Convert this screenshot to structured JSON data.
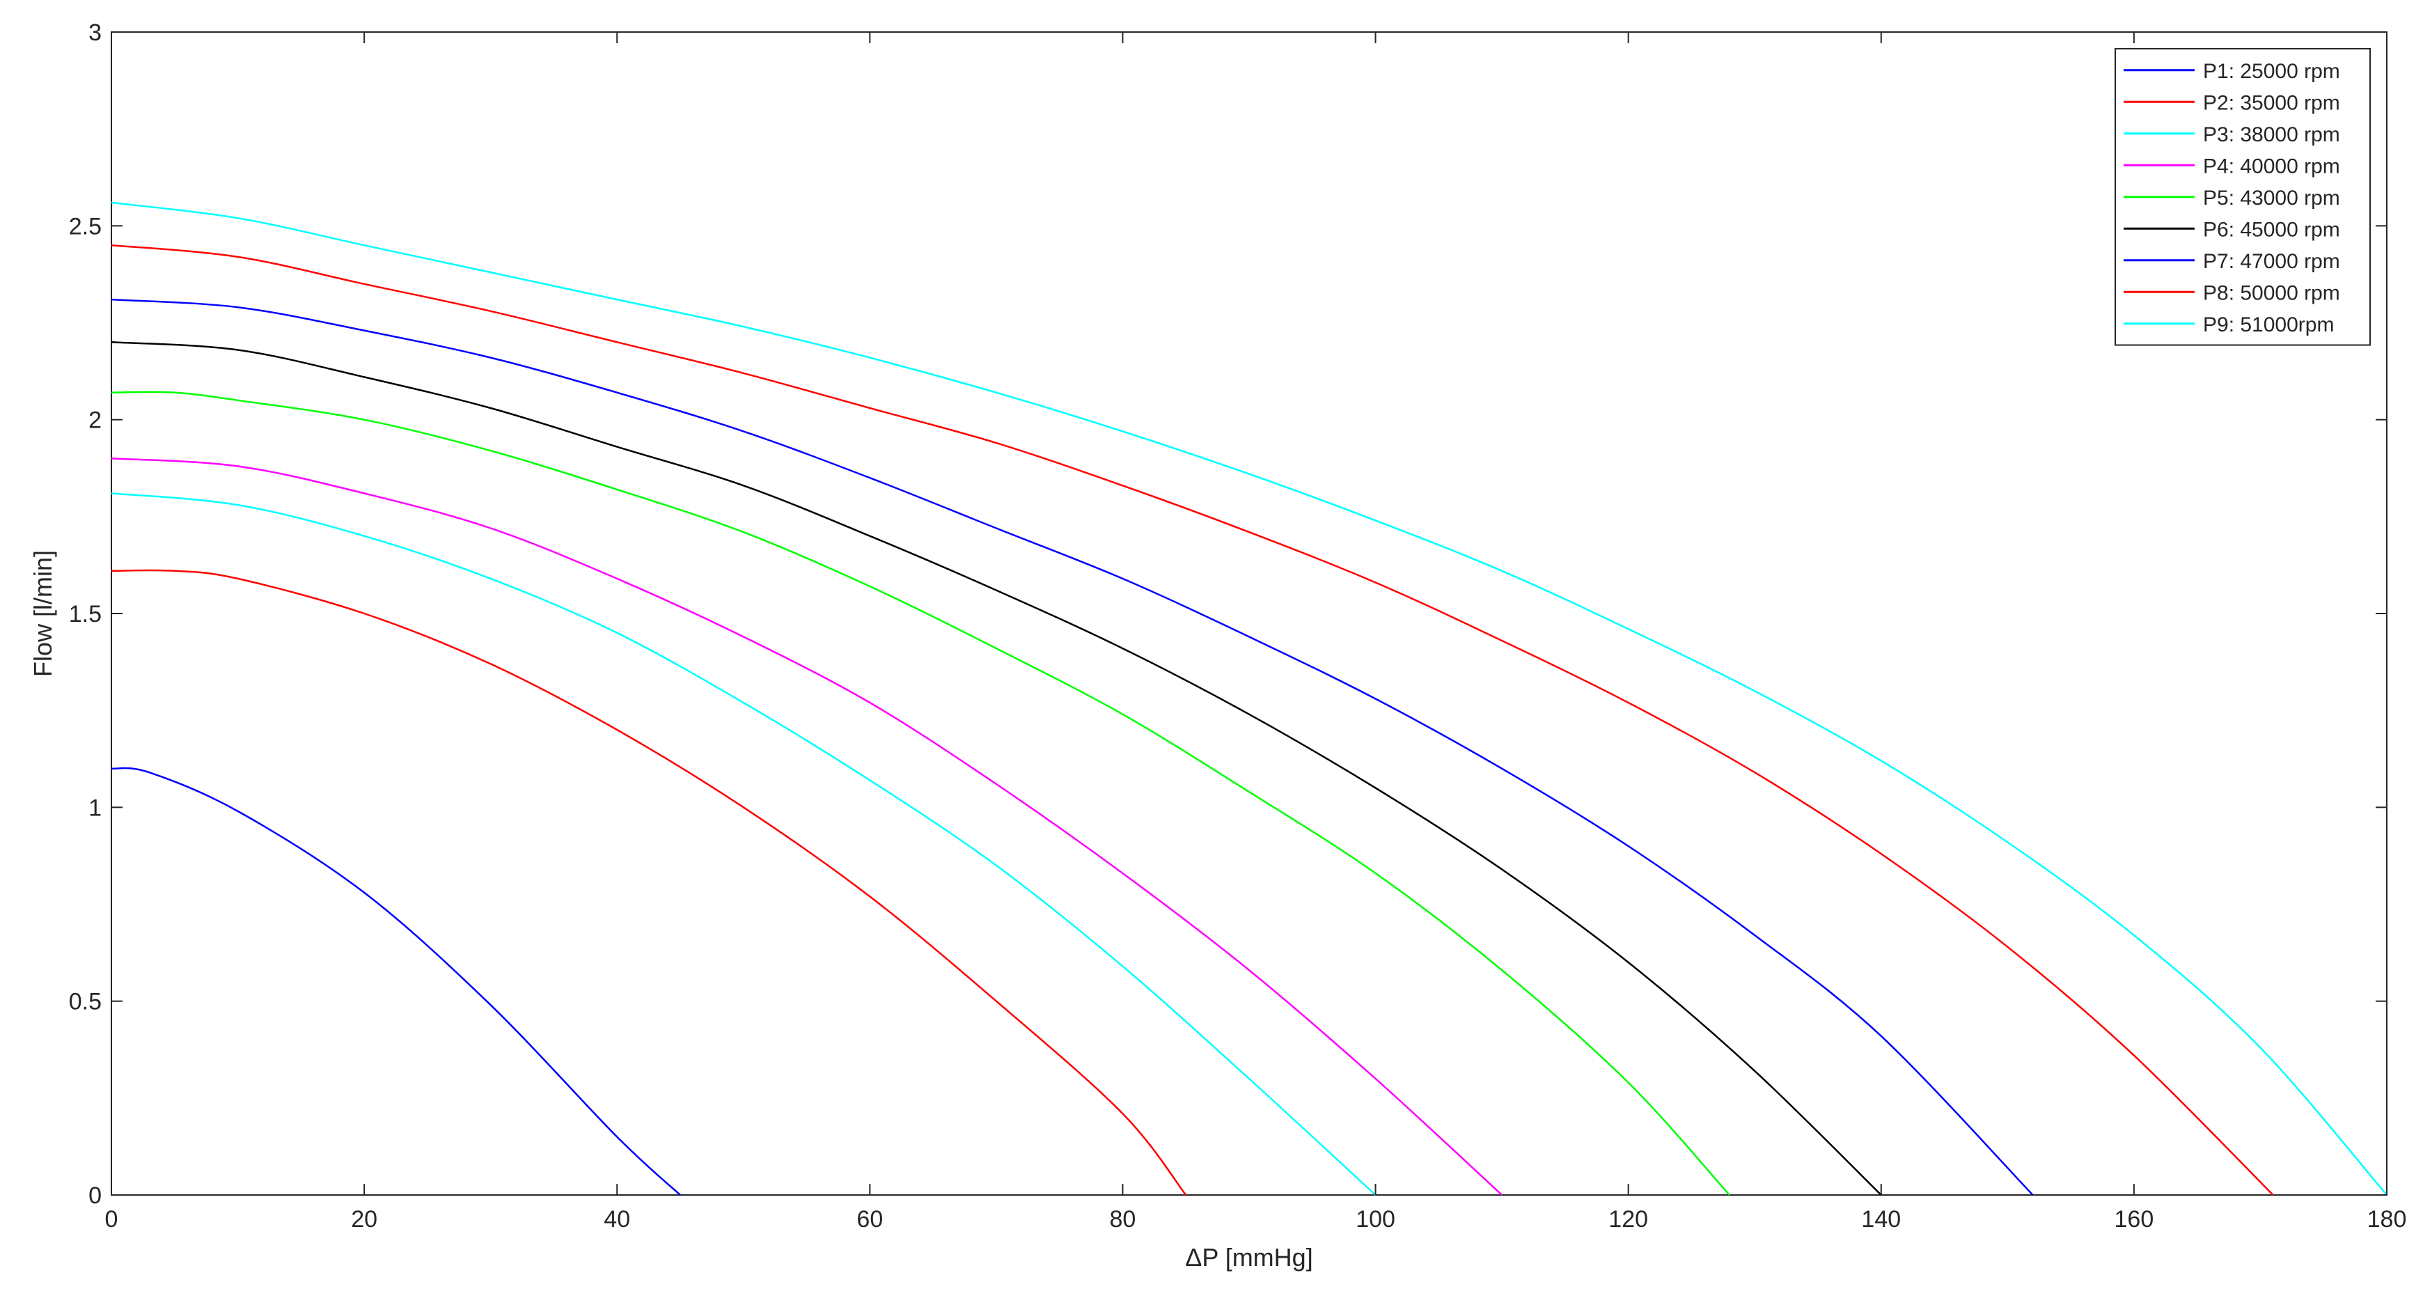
{
  "chart_data": {
    "type": "line",
    "title": "",
    "xlabel": "ΔP [mmHg]",
    "ylabel": "Flow [l/min]",
    "xlim": [
      0,
      180
    ],
    "ylim": [
      0,
      3
    ],
    "x_ticks": [
      "0",
      "20",
      "40",
      "60",
      "80",
      "100",
      "120",
      "140",
      "160",
      "180"
    ],
    "y_ticks": [
      "0",
      "0.5",
      "1",
      "1.5",
      "2",
      "2.5",
      "3"
    ],
    "grid": false,
    "legend_position": "top-right",
    "series": [
      {
        "name": "P1: 25000 rpm",
        "color": "#0000ff",
        "x": [
          0,
          3,
          10,
          20,
          30,
          40,
          45
        ],
        "y": [
          1.1,
          1.09,
          0.99,
          0.78,
          0.49,
          0.15,
          0
        ]
      },
      {
        "name": "P2: 35000 rpm",
        "color": "#ff0000",
        "x": [
          0,
          5,
          10,
          20,
          30,
          40,
          50,
          60,
          70,
          80,
          85
        ],
        "y": [
          1.61,
          1.61,
          1.59,
          1.5,
          1.37,
          1.2,
          1.0,
          0.77,
          0.5,
          0.21,
          0
        ]
      },
      {
        "name": "P3: 38000 rpm",
        "color": "#00ffff",
        "x": [
          0,
          10,
          20,
          30,
          40,
          50,
          60,
          70,
          80,
          90,
          100
        ],
        "y": [
          1.81,
          1.78,
          1.7,
          1.59,
          1.45,
          1.27,
          1.07,
          0.85,
          0.59,
          0.3,
          0
        ]
      },
      {
        "name": "P4: 40000 rpm",
        "color": "#ff00ff",
        "x": [
          0,
          10,
          20,
          30,
          40,
          50,
          60,
          70,
          80,
          90,
          100,
          110
        ],
        "y": [
          1.9,
          1.88,
          1.81,
          1.72,
          1.59,
          1.44,
          1.27,
          1.06,
          0.83,
          0.58,
          0.3,
          0
        ]
      },
      {
        "name": "P5: 43000 rpm",
        "color": "#00ff00",
        "x": [
          0,
          5,
          10,
          20,
          30,
          40,
          50,
          60,
          70,
          80,
          90,
          100,
          110,
          120,
          128
        ],
        "y": [
          2.07,
          2.07,
          2.05,
          2.0,
          1.92,
          1.82,
          1.71,
          1.57,
          1.41,
          1.24,
          1.04,
          0.83,
          0.58,
          0.29,
          0
        ]
      },
      {
        "name": "P6: 45000 rpm",
        "color": "#000000",
        "x": [
          0,
          10,
          20,
          30,
          40,
          50,
          60,
          70,
          80,
          90,
          100,
          110,
          120,
          130,
          140
        ],
        "y": [
          2.2,
          2.18,
          2.11,
          2.03,
          1.93,
          1.83,
          1.7,
          1.56,
          1.41,
          1.24,
          1.05,
          0.84,
          0.6,
          0.32,
          0
        ]
      },
      {
        "name": "P7: 47000 rpm",
        "color": "#0000ff",
        "x": [
          0,
          10,
          20,
          30,
          40,
          50,
          60,
          70,
          80,
          90,
          100,
          110,
          120,
          130,
          140,
          152
        ],
        "y": [
          2.31,
          2.29,
          2.23,
          2.16,
          2.07,
          1.97,
          1.85,
          1.72,
          1.59,
          1.44,
          1.28,
          1.1,
          0.9,
          0.67,
          0.41,
          0
        ]
      },
      {
        "name": "P8: 50000 rpm",
        "color": "#ff0000",
        "x": [
          0,
          10,
          20,
          30,
          40,
          50,
          60,
          70,
          80,
          90,
          100,
          110,
          120,
          130,
          140,
          150,
          160,
          171
        ],
        "y": [
          2.45,
          2.42,
          2.35,
          2.28,
          2.2,
          2.12,
          2.03,
          1.94,
          1.83,
          1.71,
          1.58,
          1.43,
          1.27,
          1.09,
          0.88,
          0.64,
          0.36,
          0
        ]
      },
      {
        "name": "P9: 51000rpm",
        "color": "#00ffff",
        "x": [
          0,
          10,
          20,
          30,
          40,
          50,
          60,
          70,
          80,
          90,
          100,
          110,
          120,
          130,
          140,
          150,
          160,
          170,
          180
        ],
        "y": [
          2.56,
          2.52,
          2.45,
          2.38,
          2.31,
          2.24,
          2.16,
          2.07,
          1.97,
          1.86,
          1.74,
          1.61,
          1.46,
          1.3,
          1.12,
          0.91,
          0.67,
          0.38,
          0
        ]
      }
    ]
  }
}
